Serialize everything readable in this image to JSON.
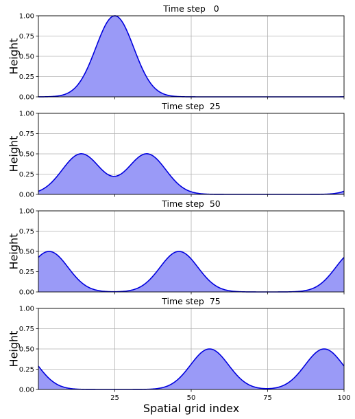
{
  "chart_data": {
    "type": "area",
    "xlabel": "Spatial grid index",
    "ylabel": "Height",
    "xlim": [
      0,
      100
    ],
    "ylim": [
      0,
      1
    ],
    "x_ticks": [
      25,
      50,
      75,
      100
    ],
    "x_tick_labels": [
      "25",
      "50",
      "75",
      "100"
    ],
    "y_ticks": [
      0,
      0.25,
      0.5,
      0.75,
      1
    ],
    "y_tick_labels": [
      "0.00",
      "0.25",
      "0.50",
      "0.75",
      "1.00"
    ],
    "grid": true,
    "line_color": "#0000dd",
    "fill_color": "#9a9af7",
    "panels": [
      {
        "title": "Time step   0",
        "peaks": [
          {
            "center": 25,
            "height": 1.0
          }
        ]
      },
      {
        "title": "Time step  25",
        "peaks": [
          {
            "center": 14,
            "height": 0.5
          },
          {
            "center": 35.5,
            "height": 0.5
          }
        ]
      },
      {
        "title": "Time step  50",
        "peaks": [
          {
            "center": 3.5,
            "height": 0.5
          },
          {
            "center": 46,
            "height": 0.5
          }
        ]
      },
      {
        "title": "Time step  75",
        "peaks": [
          {
            "center": 56,
            "height": 0.5
          },
          {
            "center": 93.5,
            "height": 0.5
          }
        ]
      }
    ]
  }
}
